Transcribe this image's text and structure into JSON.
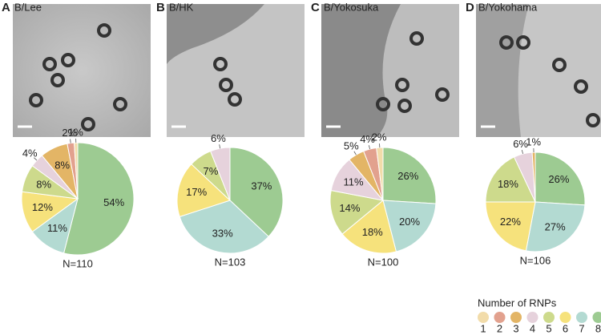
{
  "chart_data": [
    {
      "type": "pie",
      "panel": "A",
      "title": "B/Lee",
      "note": "N=110",
      "values": [
        1,
        2,
        8,
        4,
        8,
        12,
        11,
        54
      ],
      "value_labels": [
        "1%",
        "2%",
        "8%",
        "4%",
        "8%",
        "12%",
        "11%",
        "54%"
      ]
    },
    {
      "type": "pie",
      "panel": "B",
      "title": "B/HK",
      "note": "N=103",
      "values": [
        0,
        0,
        0,
        6,
        7,
        17,
        33,
        37
      ],
      "value_labels": [
        null,
        null,
        null,
        "6%",
        "7%",
        "17%",
        "33%",
        "37%"
      ]
    },
    {
      "type": "pie",
      "panel": "C",
      "title": "B/Yokosuka",
      "note": "N=100",
      "values": [
        2,
        4,
        5,
        11,
        14,
        18,
        20,
        26
      ],
      "value_labels": [
        "2%",
        "4%",
        "5%",
        "11%",
        "14%",
        "18%",
        "20%",
        "26%"
      ]
    },
    {
      "type": "pie",
      "panel": "D",
      "title": "B/Yokohama",
      "note": "N=106",
      "values": [
        0,
        0,
        1,
        6,
        18,
        22,
        27,
        26
      ],
      "value_labels": [
        null,
        null,
        "1%",
        "6%",
        "18%",
        "22%",
        "27%",
        "26%"
      ]
    }
  ],
  "legend": {
    "title": "Number of RNPs",
    "labels": [
      "1",
      "2",
      "3",
      "4",
      "5",
      "6",
      "7",
      "8"
    ],
    "colors": [
      "#f2dcaa",
      "#e2a18e",
      "#e3b566",
      "#e6d2dc",
      "#cdda8c",
      "#f6e27c",
      "#b3dad2",
      "#9dcb92"
    ]
  }
}
